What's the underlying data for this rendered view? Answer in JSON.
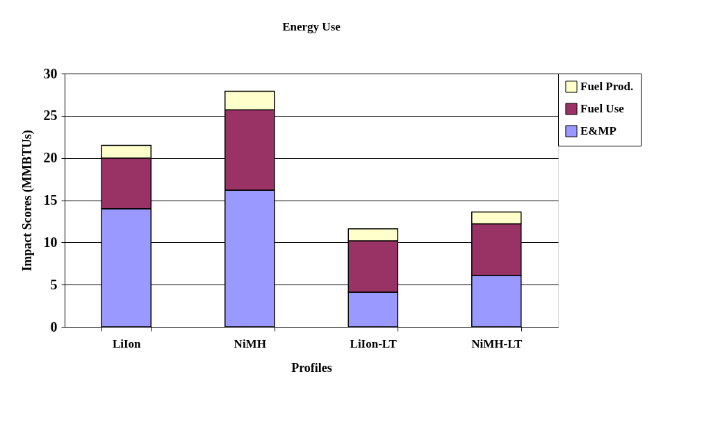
{
  "chart_data": {
    "type": "bar",
    "title": "Energy Use",
    "xlabel": "Profiles",
    "ylabel": "Impact Scores (MMBTUs)",
    "categories": [
      "LiIon",
      "NiMH",
      "LiIon-LT",
      "NiMH-LT"
    ],
    "stacked": true,
    "series": [
      {
        "name": "E&MP",
        "color": "#9999ff",
        "values": [
          14.0,
          16.2,
          4.1,
          6.1
        ]
      },
      {
        "name": "Fuel Use",
        "color": "#993366",
        "values": [
          6.0,
          9.5,
          6.1,
          6.1
        ]
      },
      {
        "name": "Fuel Prod.",
        "color": "#ffffcc",
        "values": [
          1.5,
          2.2,
          1.4,
          1.4
        ]
      }
    ],
    "ylim": [
      0,
      30
    ],
    "yticks": [
      0,
      5,
      10,
      15,
      20,
      25,
      30
    ],
    "grid": "y",
    "legend": "right"
  }
}
